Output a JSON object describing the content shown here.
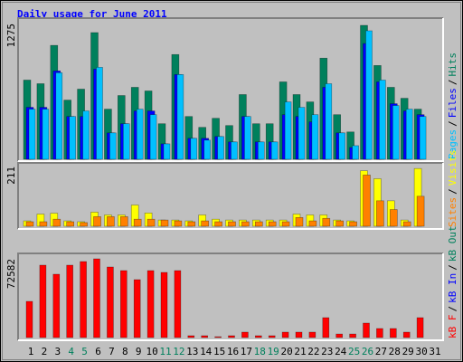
{
  "title": "Daily usage for June 2011",
  "legend_separator": "/",
  "chart_data": [
    {
      "type": "bar",
      "ylim": [
        0,
        1275
      ],
      "yticks": [
        1275
      ],
      "series": [
        {
          "name": "Hits",
          "color": "#00805c",
          "values": [
            744,
            710,
            1070,
            556,
            659,
            1190,
            471,
            599,
            676,
            642,
            334,
            984,
            402,
            300,
            385,
            317,
            608,
            334,
            334,
            727,
            608,
            539,
            950,
            419,
            257,
            1258,
            881,
            676,
            573,
            471,
            0
          ]
        },
        {
          "name": "Files",
          "color": "#0000ff",
          "values": [
            488,
            488,
            830,
            402,
            402,
            847,
            248,
            334,
            454,
            454,
            145,
            796,
            197,
            197,
            214,
            163,
            402,
            163,
            163,
            419,
            402,
            351,
            676,
            248,
            111,
            1087,
            727,
            522,
            454,
            419,
            0
          ]
        },
        {
          "name": "Pages",
          "color": "#00c0ff",
          "values": [
            471,
            471,
            813,
            402,
            454,
            864,
            248,
            334,
            471,
            419,
            145,
            796,
            197,
            180,
            214,
            163,
            402,
            163,
            163,
            539,
            488,
            419,
            710,
            248,
            128,
            1207,
            744,
            505,
            471,
            402,
            0
          ]
        }
      ]
    },
    {
      "type": "bar",
      "ylim": [
        0,
        211
      ],
      "yticks": [
        211
      ],
      "series": [
        {
          "name": "Visits",
          "color": "#ffff00",
          "values": [
            19,
            43,
            46,
            19,
            16,
            50,
            40,
            40,
            75,
            47,
            22,
            22,
            19,
            40,
            25,
            22,
            22,
            22,
            22,
            22,
            43,
            40,
            40,
            22,
            19,
            196,
            168,
            90,
            22,
            204,
            0
          ]
        },
        {
          "name": "Sites",
          "color": "#ff8000",
          "values": [
            16,
            16,
            25,
            16,
            13,
            34,
            34,
            34,
            25,
            25,
            22,
            19,
            16,
            19,
            16,
            16,
            16,
            16,
            16,
            16,
            31,
            19,
            28,
            19,
            16,
            181,
            90,
            59,
            16,
            106,
            0
          ]
        }
      ]
    },
    {
      "type": "bar",
      "ylim": [
        0,
        72582
      ],
      "yticks": [
        72582
      ],
      "categories": [
        "1",
        "2",
        "3",
        "4",
        "5",
        "6",
        "7",
        "8",
        "9",
        "10",
        "11",
        "12",
        "13",
        "14",
        "15",
        "16",
        "17",
        "18",
        "19",
        "20",
        "21",
        "22",
        "23",
        "24",
        "25",
        "26",
        "27",
        "28",
        "29",
        "30",
        "31"
      ],
      "weekend_categories": [
        3,
        4,
        10,
        11,
        17,
        18,
        24,
        25
      ],
      "weekend_color": "#00805c",
      "weekday_color": "#000000",
      "series": [
        {
          "name": "kB F",
          "color": "#ff0000",
          "values": [
            33371,
            66742,
            58400,
            66742,
            70080,
            72582,
            65070,
            61737,
            53393,
            61737,
            60068,
            61737,
            1700,
            1700,
            800,
            1700,
            5000,
            1700,
            1700,
            5000,
            5000,
            5000,
            18354,
            3300,
            3300,
            13348,
            8343,
            8343,
            5000,
            18354,
            0
          ]
        }
      ],
      "legend_only": [
        {
          "name": "kB In",
          "color": "#0000ff"
        },
        {
          "name": "kB Out",
          "color": "#00805c"
        }
      ]
    }
  ]
}
